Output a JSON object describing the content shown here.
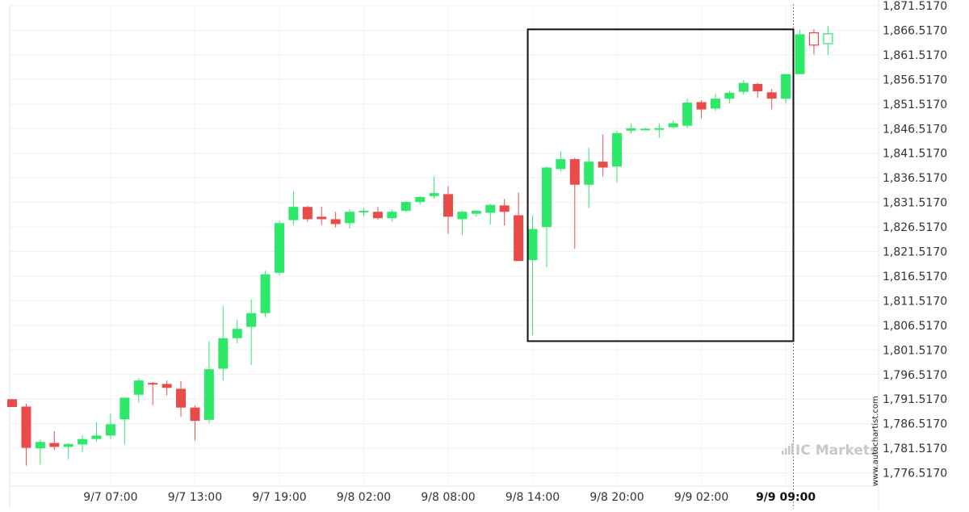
{
  "chart_data": {
    "type": "candlestick",
    "title": "",
    "xlabel": "",
    "ylabel": "",
    "ylim": [
      1773.517,
      1873.017
    ],
    "y_ticks": [
      1871.517,
      1866.517,
      1861.517,
      1856.517,
      1851.517,
      1846.517,
      1841.517,
      1836.517,
      1831.517,
      1826.517,
      1821.517,
      1816.517,
      1811.517,
      1806.517,
      1801.517,
      1796.517,
      1791.517,
      1786.517,
      1781.517,
      1776.517
    ],
    "y_tick_labels": [
      "1,871.5170",
      "1,866.5170",
      "1,861.5170",
      "1,856.5170",
      "1,851.5170",
      "1,846.5170",
      "1,841.5170",
      "1,836.5170",
      "1,831.5170",
      "1,826.5170",
      "1,821.5170",
      "1,816.5170",
      "1,811.5170",
      "1,806.5170",
      "1,801.5170",
      "1,796.5170",
      "1,791.5170",
      "1,786.5170",
      "1,781.5170",
      "1,776.5170"
    ],
    "x_labels": [
      {
        "index": 7,
        "text": "9/7 07:00"
      },
      {
        "index": 13,
        "text": "9/7 13:00"
      },
      {
        "index": 19,
        "text": "9/7 19:00"
      },
      {
        "index": 25,
        "text": "9/8 02:00"
      },
      {
        "index": 31,
        "text": "9/8 08:00"
      },
      {
        "index": 37,
        "text": "9/8 14:00"
      },
      {
        "index": 43,
        "text": "9/8 20:00"
      },
      {
        "index": 49,
        "text": "9/9 02:00"
      },
      {
        "index": 55,
        "text": "9/9 09:00",
        "bold": true
      }
    ],
    "grid": true,
    "colors": {
      "up": "#2ee86a",
      "down": "#e94b4b",
      "rect": "#111111",
      "vline": "#888888"
    },
    "candles": [
      {
        "o": 1791.5,
        "h": 1791.5,
        "l": 1789.9,
        "c": 1789.9
      },
      {
        "o": 1790.0,
        "h": 1790.6,
        "l": 1778.0,
        "c": 1781.6
      },
      {
        "o": 1781.5,
        "h": 1783.3,
        "l": 1778.2,
        "c": 1782.8
      },
      {
        "o": 1782.6,
        "h": 1785.0,
        "l": 1781.2,
        "c": 1781.8
      },
      {
        "o": 1781.8,
        "h": 1782.6,
        "l": 1779.3,
        "c": 1782.4
      },
      {
        "o": 1782.3,
        "h": 1784.2,
        "l": 1780.8,
        "c": 1783.4
      },
      {
        "o": 1783.4,
        "h": 1786.8,
        "l": 1782.8,
        "c": 1784.1
      },
      {
        "o": 1784.1,
        "h": 1788.6,
        "l": 1783.4,
        "c": 1786.4
      },
      {
        "o": 1787.4,
        "h": 1791.8,
        "l": 1782.3,
        "c": 1791.8
      },
      {
        "o": 1792.4,
        "h": 1795.8,
        "l": 1790.8,
        "c": 1795.3
      },
      {
        "o": 1794.8,
        "h": 1795.0,
        "l": 1790.3,
        "c": 1794.6
      },
      {
        "o": 1794.6,
        "h": 1795.3,
        "l": 1792.3,
        "c": 1793.8
      },
      {
        "o": 1793.6,
        "h": 1795.2,
        "l": 1787.9,
        "c": 1789.8
      },
      {
        "o": 1789.8,
        "h": 1790.2,
        "l": 1783.1,
        "c": 1787.1
      },
      {
        "o": 1787.3,
        "h": 1803.2,
        "l": 1786.6,
        "c": 1797.6
      },
      {
        "o": 1797.7,
        "h": 1810.4,
        "l": 1795.3,
        "c": 1803.9
      },
      {
        "o": 1803.9,
        "h": 1807.6,
        "l": 1802.9,
        "c": 1805.8
      },
      {
        "o": 1806.2,
        "h": 1811.8,
        "l": 1798.5,
        "c": 1809.0
      },
      {
        "o": 1809.0,
        "h": 1817.6,
        "l": 1808.2,
        "c": 1816.9
      },
      {
        "o": 1817.2,
        "h": 1827.8,
        "l": 1816.7,
        "c": 1827.3
      },
      {
        "o": 1827.9,
        "h": 1833.8,
        "l": 1826.9,
        "c": 1830.6
      },
      {
        "o": 1830.6,
        "h": 1830.8,
        "l": 1827.6,
        "c": 1828.1
      },
      {
        "o": 1828.6,
        "h": 1830.6,
        "l": 1826.9,
        "c": 1828.1
      },
      {
        "o": 1828.1,
        "h": 1829.6,
        "l": 1826.4,
        "c": 1827.1
      },
      {
        "o": 1827.3,
        "h": 1830.1,
        "l": 1826.2,
        "c": 1829.6
      },
      {
        "o": 1829.6,
        "h": 1830.4,
        "l": 1828.6,
        "c": 1829.8
      },
      {
        "o": 1829.6,
        "h": 1830.6,
        "l": 1828.0,
        "c": 1828.3
      },
      {
        "o": 1828.3,
        "h": 1830.1,
        "l": 1827.6,
        "c": 1829.6
      },
      {
        "o": 1829.8,
        "h": 1831.8,
        "l": 1829.6,
        "c": 1831.6
      },
      {
        "o": 1831.6,
        "h": 1832.8,
        "l": 1831.1,
        "c": 1832.6
      },
      {
        "o": 1832.8,
        "h": 1836.8,
        "l": 1832.3,
        "c": 1833.4
      },
      {
        "o": 1833.2,
        "h": 1834.8,
        "l": 1825.1,
        "c": 1828.6
      },
      {
        "o": 1828.1,
        "h": 1829.9,
        "l": 1824.9,
        "c": 1829.6
      },
      {
        "o": 1829.2,
        "h": 1829.8,
        "l": 1828.6,
        "c": 1829.8
      },
      {
        "o": 1829.4,
        "h": 1831.2,
        "l": 1827.0,
        "c": 1831.0
      },
      {
        "o": 1830.9,
        "h": 1832.2,
        "l": 1826.8,
        "c": 1829.6
      },
      {
        "o": 1828.9,
        "h": 1833.5,
        "l": 1819.8,
        "c": 1819.6
      },
      {
        "o": 1819.8,
        "h": 1828.8,
        "l": 1804.5,
        "c": 1826.1
      },
      {
        "o": 1826.5,
        "h": 1838.8,
        "l": 1818.3,
        "c": 1838.6
      },
      {
        "o": 1838.3,
        "h": 1841.9,
        "l": 1837.8,
        "c": 1840.3
      },
      {
        "o": 1840.3,
        "h": 1840.6,
        "l": 1822.1,
        "c": 1835.1
      },
      {
        "o": 1835.1,
        "h": 1842.6,
        "l": 1830.3,
        "c": 1839.8
      },
      {
        "o": 1839.8,
        "h": 1845.3,
        "l": 1836.8,
        "c": 1838.6
      },
      {
        "o": 1838.8,
        "h": 1846.1,
        "l": 1835.6,
        "c": 1845.6
      },
      {
        "o": 1846.1,
        "h": 1847.6,
        "l": 1845.6,
        "c": 1846.6
      },
      {
        "o": 1846.5,
        "h": 1846.7,
        "l": 1846.3,
        "c": 1846.5
      },
      {
        "o": 1846.6,
        "h": 1847.6,
        "l": 1844.6,
        "c": 1846.6
      },
      {
        "o": 1846.8,
        "h": 1848.2,
        "l": 1846.5,
        "c": 1847.6
      },
      {
        "o": 1847.1,
        "h": 1852.6,
        "l": 1846.6,
        "c": 1851.8
      },
      {
        "o": 1851.9,
        "h": 1852.3,
        "l": 1848.6,
        "c": 1850.4
      },
      {
        "o": 1850.6,
        "h": 1853.7,
        "l": 1850.1,
        "c": 1852.6
      },
      {
        "o": 1852.6,
        "h": 1854.2,
        "l": 1851.6,
        "c": 1853.8
      },
      {
        "o": 1854.0,
        "h": 1856.4,
        "l": 1853.4,
        "c": 1855.8
      },
      {
        "o": 1855.6,
        "h": 1855.8,
        "l": 1852.8,
        "c": 1854.1
      },
      {
        "o": 1853.9,
        "h": 1854.6,
        "l": 1850.4,
        "c": 1852.6
      },
      {
        "o": 1852.6,
        "h": 1857.6,
        "l": 1851.6,
        "c": 1857.6
      },
      {
        "o": 1857.6,
        "h": 1866.6,
        "l": 1857.6,
        "c": 1865.7
      },
      {
        "o": 1866.0,
        "h": 1866.7,
        "l": 1861.6,
        "c": 1863.5,
        "hollow": true
      },
      {
        "o": 1863.8,
        "h": 1867.4,
        "l": 1861.5,
        "c": 1865.8,
        "hollow": true
      }
    ],
    "pattern_box": {
      "start_index": 37,
      "end_index": 56,
      "top": 1866.7,
      "bottom": 1803.3
    },
    "current_time_index": 56,
    "watermark": "www.autochartist.com",
    "brand": "IC Markets"
  }
}
